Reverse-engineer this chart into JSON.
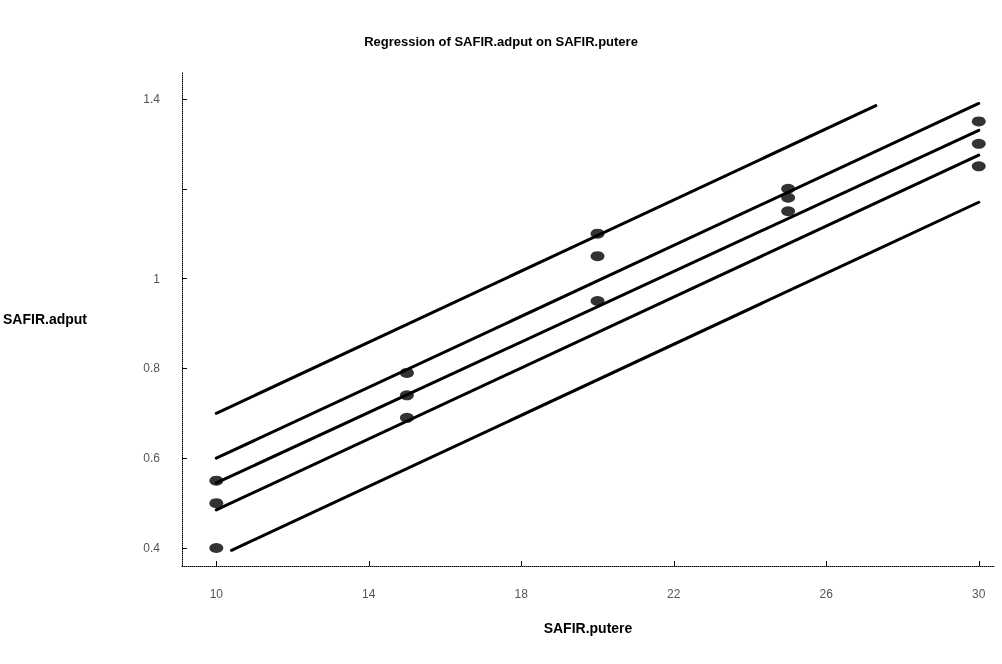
{
  "chart_data": {
    "type": "scatter",
    "title": "Regression of SAFIR.adput on SAFIR.putere",
    "xlabel": "SAFIR.putere",
    "ylabel": "SAFIR.adput",
    "xlim": [
      9.1,
      30.4
    ],
    "xticks": [
      10,
      14,
      18,
      22,
      26,
      30
    ],
    "ylim": [
      0.36,
      1.46
    ],
    "yticks": [
      0.4,
      0.6,
      0.8,
      1,
      {
        "value": 1.2,
        "label": null
      },
      1.4
    ],
    "grid": false,
    "line_style": "solid",
    "series": [
      {
        "marker": "circle",
        "color": "#000000",
        "x": [
          10,
          10,
          10,
          15,
          15,
          15,
          20,
          20,
          20,
          25,
          25,
          25,
          30,
          30,
          30
        ],
        "values": [
          0.55,
          0.5,
          0.4,
          0.79,
          0.74,
          0.69,
          1.1,
          1.05,
          0.95,
          1.2,
          1.18,
          1.15,
          1.35,
          1.3,
          1.25
        ]
      },
      {
        "type": "line",
        "marker": "none",
        "color": "#000000",
        "x": [
          10,
          27.3
        ],
        "values": [
          0.7,
          1.385
        ]
      },
      {
        "type": "line",
        "marker": "none",
        "color": "#000000",
        "x": [
          10,
          30
        ],
        "values": [
          0.6,
          1.39
        ]
      },
      {
        "type": "line",
        "marker": "none",
        "color": "#000000",
        "x": [
          10,
          30
        ],
        "values": [
          0.545,
          1.33
        ]
      },
      {
        "type": "line",
        "marker": "none",
        "color": "#000000",
        "x": [
          10,
          30
        ],
        "values": [
          0.485,
          1.275
        ]
      },
      {
        "type": "line",
        "marker": "none",
        "color": "#000000",
        "x": [
          10.4,
          30
        ],
        "values": [
          0.395,
          1.17
        ]
      }
    ]
  }
}
